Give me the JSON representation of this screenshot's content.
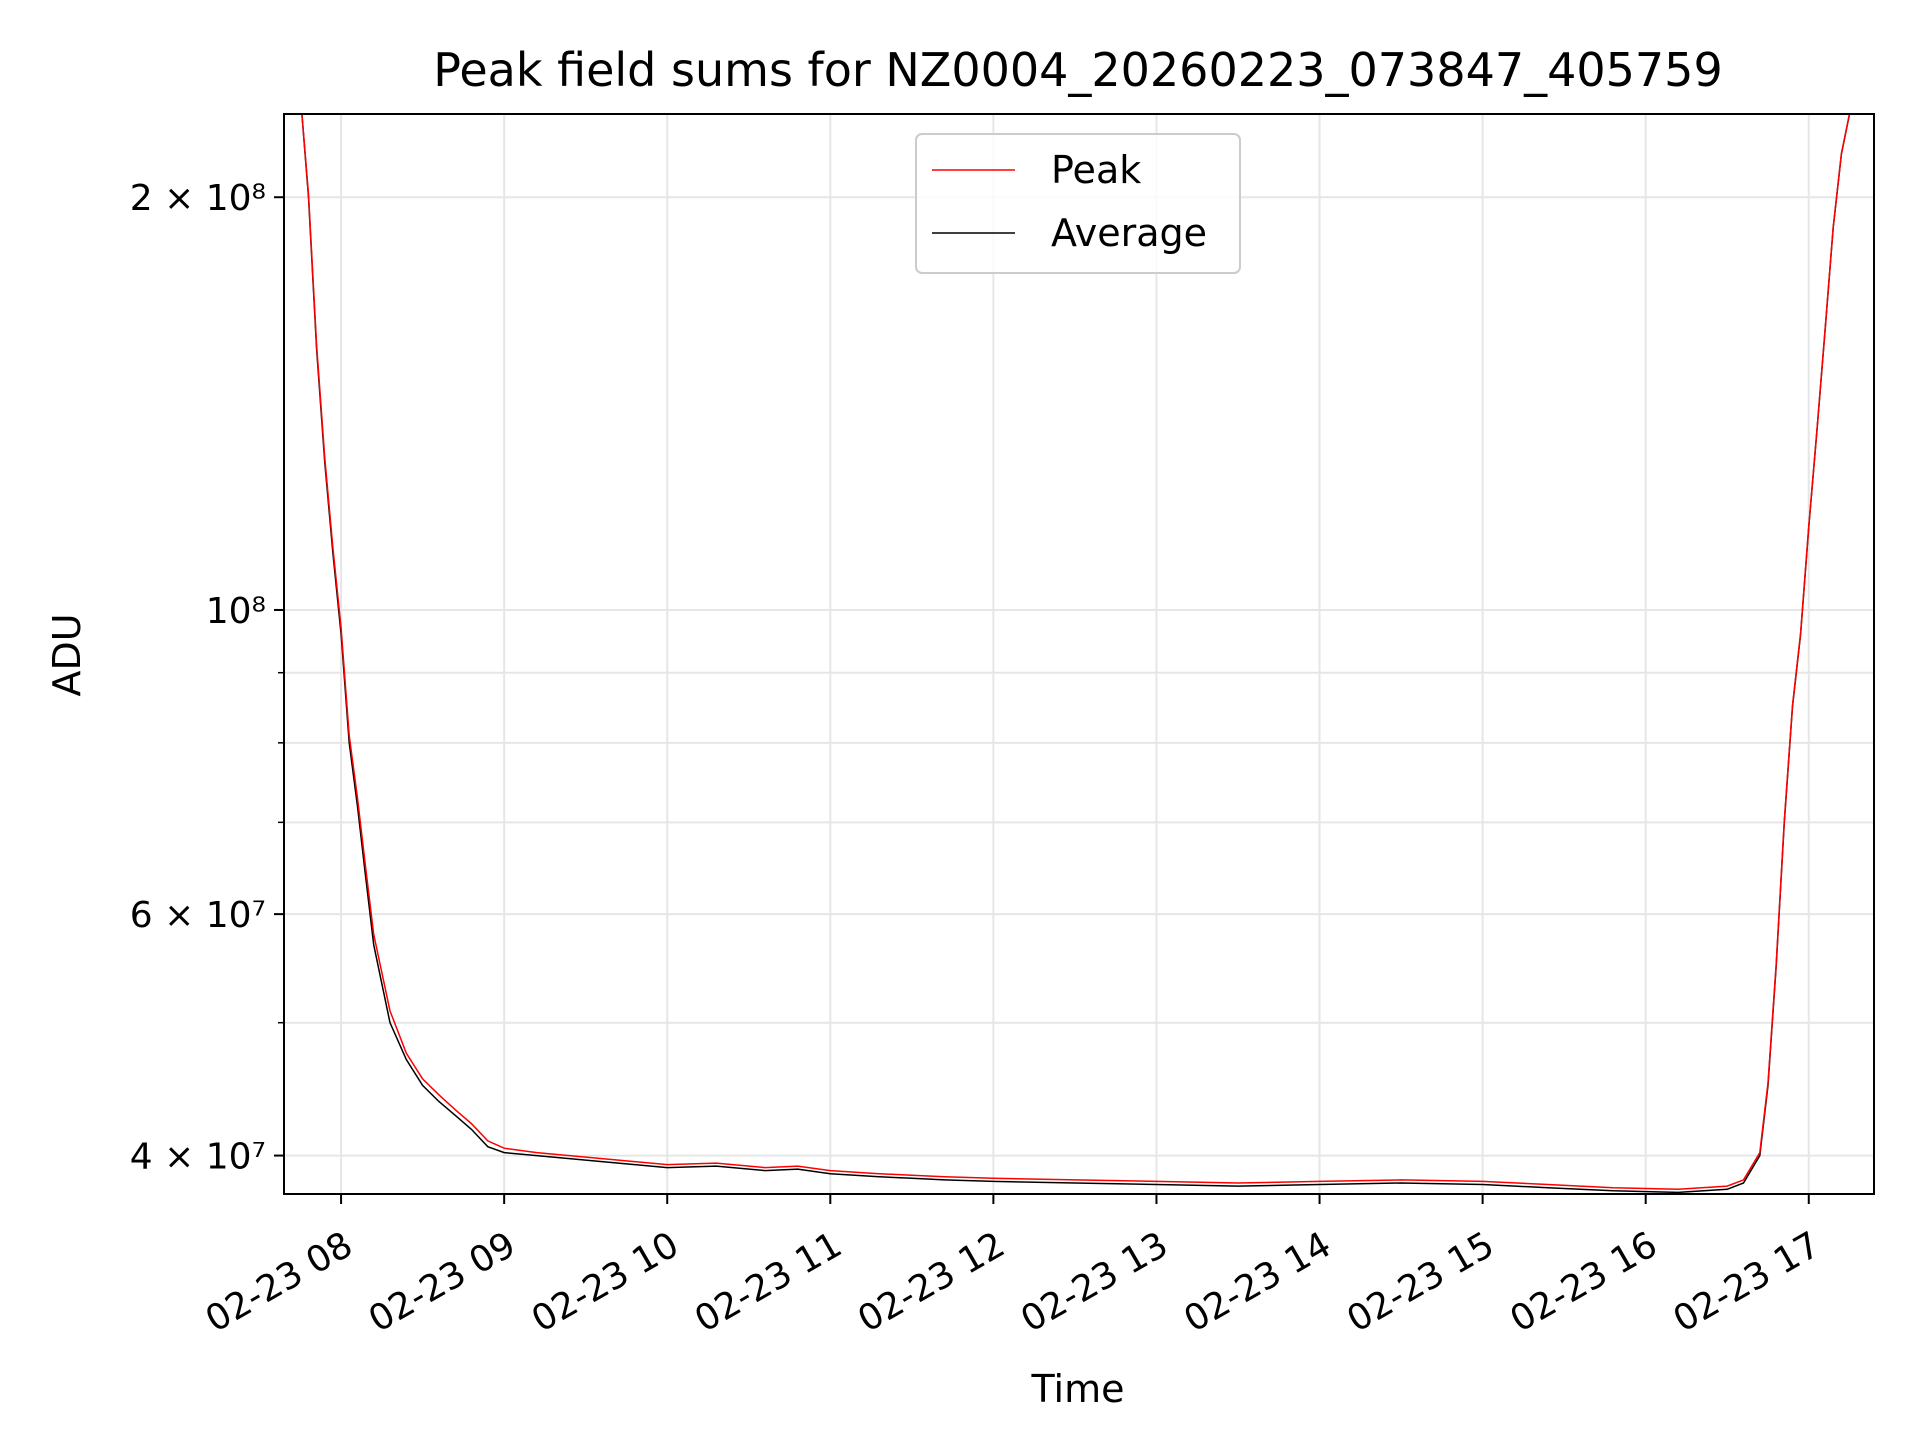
{
  "chart_data": {
    "type": "line",
    "title": "Peak field sums for NZ0004_20260223_073847_405759",
    "xlabel": "Time",
    "ylabel": "ADU",
    "yscale": "log",
    "ylim": [
      37500000,
      230000000
    ],
    "xlim_hours": [
      7.65,
      17.4
    ],
    "grid": true,
    "legend_position": "top-center",
    "x_ticks": [
      {
        "hour": 8,
        "label": "02-23 08"
      },
      {
        "hour": 9,
        "label": "02-23 09"
      },
      {
        "hour": 10,
        "label": "02-23 10"
      },
      {
        "hour": 11,
        "label": "02-23 11"
      },
      {
        "hour": 12,
        "label": "02-23 12"
      },
      {
        "hour": 13,
        "label": "02-23 13"
      },
      {
        "hour": 14,
        "label": "02-23 14"
      },
      {
        "hour": 15,
        "label": "02-23 15"
      },
      {
        "hour": 16,
        "label": "02-23 16"
      },
      {
        "hour": 17,
        "label": "02-23 17"
      }
    ],
    "y_ticks": [
      {
        "value": 40000000,
        "label": "4 × 10⁷"
      },
      {
        "value": 60000000,
        "label": "6 × 10⁷"
      },
      {
        "value": 100000000,
        "label": "10⁸"
      },
      {
        "value": 200000000,
        "label": "2 × 10⁸"
      }
    ],
    "y_minor_ticks": [
      50000000,
      70000000,
      80000000,
      90000000
    ],
    "series": [
      {
        "name": "Average",
        "color": "#000000",
        "points": [
          [
            7.65,
            230000000
          ],
          [
            7.76,
            230000000
          ],
          [
            7.8,
            200000000
          ],
          [
            7.85,
            155000000
          ],
          [
            7.9,
            128000000
          ],
          [
            7.95,
            110000000
          ],
          [
            8.0,
            96000000
          ],
          [
            8.05,
            80000000
          ],
          [
            8.1,
            72000000
          ],
          [
            8.15,
            64000000
          ],
          [
            8.2,
            57000000
          ],
          [
            8.3,
            50000000
          ],
          [
            8.4,
            47000000
          ],
          [
            8.5,
            45000000
          ],
          [
            8.6,
            43800000
          ],
          [
            8.7,
            42800000
          ],
          [
            8.8,
            41800000
          ],
          [
            8.9,
            40600000
          ],
          [
            9.0,
            40200000
          ],
          [
            9.2,
            40000000
          ],
          [
            9.5,
            39700000
          ],
          [
            9.8,
            39400000
          ],
          [
            10.0,
            39200000
          ],
          [
            10.3,
            39300000
          ],
          [
            10.6,
            39000000
          ],
          [
            10.8,
            39100000
          ],
          [
            11.0,
            38800000
          ],
          [
            11.3,
            38600000
          ],
          [
            11.5,
            38500000
          ],
          [
            11.7,
            38400000
          ],
          [
            12.0,
            38300000
          ],
          [
            12.5,
            38200000
          ],
          [
            13.0,
            38100000
          ],
          [
            13.5,
            38000000
          ],
          [
            14.0,
            38100000
          ],
          [
            14.5,
            38200000
          ],
          [
            15.0,
            38100000
          ],
          [
            15.4,
            37900000
          ],
          [
            15.8,
            37700000
          ],
          [
            16.2,
            37600000
          ],
          [
            16.5,
            37800000
          ],
          [
            16.6,
            38200000
          ],
          [
            16.7,
            40000000
          ],
          [
            16.75,
            45000000
          ],
          [
            16.8,
            55000000
          ],
          [
            16.85,
            70000000
          ],
          [
            16.9,
            85000000
          ],
          [
            16.95,
            96000000
          ],
          [
            17.0,
            115000000
          ],
          [
            17.05,
            135000000
          ],
          [
            17.1,
            160000000
          ],
          [
            17.15,
            190000000
          ],
          [
            17.2,
            215000000
          ],
          [
            17.25,
            230000000
          ],
          [
            17.4,
            230000000
          ]
        ]
      },
      {
        "name": "Peak",
        "color": "#ff0000",
        "points": [
          [
            7.65,
            230000000
          ],
          [
            7.76,
            230000000
          ],
          [
            7.8,
            201000000
          ],
          [
            7.85,
            156000000
          ],
          [
            7.9,
            129000000
          ],
          [
            7.95,
            111000000
          ],
          [
            8.0,
            97000000
          ],
          [
            8.05,
            81000000
          ],
          [
            8.1,
            73000000
          ],
          [
            8.15,
            65000000
          ],
          [
            8.2,
            58000000
          ],
          [
            8.3,
            51000000
          ],
          [
            8.4,
            47500000
          ],
          [
            8.5,
            45500000
          ],
          [
            8.6,
            44300000
          ],
          [
            8.7,
            43200000
          ],
          [
            8.8,
            42200000
          ],
          [
            8.9,
            41000000
          ],
          [
            9.0,
            40500000
          ],
          [
            9.2,
            40200000
          ],
          [
            9.5,
            39900000
          ],
          [
            9.8,
            39600000
          ],
          [
            10.0,
            39400000
          ],
          [
            10.3,
            39500000
          ],
          [
            10.6,
            39200000
          ],
          [
            10.8,
            39300000
          ],
          [
            11.0,
            39000000
          ],
          [
            11.3,
            38800000
          ],
          [
            11.5,
            38700000
          ],
          [
            11.7,
            38600000
          ],
          [
            12.0,
            38500000
          ],
          [
            12.5,
            38400000
          ],
          [
            13.0,
            38300000
          ],
          [
            13.5,
            38200000
          ],
          [
            14.0,
            38300000
          ],
          [
            14.5,
            38400000
          ],
          [
            15.0,
            38300000
          ],
          [
            15.4,
            38100000
          ],
          [
            15.8,
            37900000
          ],
          [
            16.2,
            37800000
          ],
          [
            16.5,
            38000000
          ],
          [
            16.6,
            38400000
          ],
          [
            16.7,
            40200000
          ],
          [
            16.75,
            45200000
          ],
          [
            16.8,
            55200000
          ],
          [
            16.85,
            70200000
          ],
          [
            16.9,
            85200000
          ],
          [
            16.95,
            96200000
          ],
          [
            17.0,
            115200000
          ],
          [
            17.05,
            135200000
          ],
          [
            17.1,
            160200000
          ],
          [
            17.15,
            190200000
          ],
          [
            17.2,
            215200000
          ],
          [
            17.25,
            230000000
          ],
          [
            17.4,
            230000000
          ]
        ]
      }
    ],
    "legend": [
      {
        "name": "Peak",
        "color": "#ff0000"
      },
      {
        "name": "Average",
        "color": "#000000"
      }
    ]
  }
}
